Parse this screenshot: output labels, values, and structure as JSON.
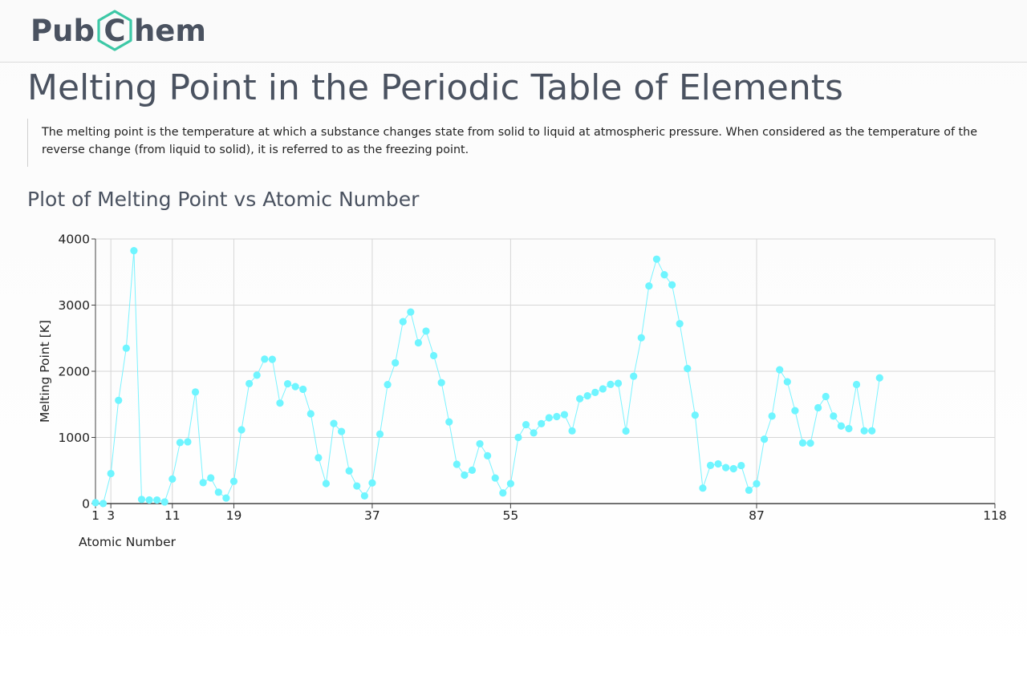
{
  "header": {
    "logo_left": "Pub",
    "logo_mid": "C",
    "logo_right": "hem"
  },
  "page_title": "Melting Point in the Periodic Table of Elements",
  "description": "The melting point is the temperature at which a substance changes state from solid to liquid at atmospheric pressure. When considered as the temperature of the reverse change (from liquid to solid), it is referred to as the freezing point.",
  "plot_heading": "Plot of Melting Point vs Atomic Number",
  "colors": {
    "brand_green": "#3dc8a6",
    "marker": "#6ff5ff",
    "line": "#7af3ff"
  },
  "chart_data": {
    "type": "line",
    "title": "",
    "xlabel": "Atomic Number",
    "ylabel": "Melting Point [K]",
    "xlim": [
      1,
      118
    ],
    "ylim": [
      0,
      4000
    ],
    "xticks": [
      1,
      3,
      11,
      19,
      37,
      55,
      87,
      118
    ],
    "yticks": [
      0,
      1000,
      2000,
      3000,
      4000
    ],
    "grid": true,
    "series": [
      {
        "name": "",
        "x": [
          1,
          2,
          3,
          4,
          5,
          6,
          7,
          8,
          9,
          10,
          11,
          12,
          13,
          14,
          15,
          16,
          17,
          18,
          19,
          20,
          21,
          22,
          23,
          24,
          25,
          26,
          27,
          28,
          29,
          30,
          31,
          32,
          33,
          34,
          35,
          36,
          37,
          38,
          39,
          40,
          41,
          42,
          43,
          44,
          45,
          46,
          47,
          48,
          49,
          50,
          51,
          52,
          53,
          54,
          55,
          56,
          57,
          58,
          59,
          60,
          61,
          62,
          63,
          64,
          65,
          66,
          67,
          68,
          69,
          70,
          71,
          72,
          73,
          74,
          75,
          76,
          77,
          78,
          79,
          80,
          81,
          82,
          83,
          84,
          85,
          86,
          87,
          88,
          89,
          90,
          91,
          92,
          93,
          94,
          95,
          96,
          97,
          98,
          99,
          100,
          101,
          102,
          103
        ],
        "y": [
          14,
          1,
          454,
          1560,
          2349,
          3823,
          63,
          55,
          54,
          25,
          371,
          923,
          934,
          1687,
          317,
          388,
          172,
          84,
          337,
          1115,
          1814,
          1941,
          2183,
          2180,
          1519,
          1811,
          1768,
          1728,
          1358,
          693,
          303,
          1211,
          1090,
          494,
          266,
          116,
          312,
          1050,
          1799,
          2128,
          2750,
          2896,
          2430,
          2607,
          2237,
          1828,
          1235,
          594,
          430,
          505,
          904,
          723,
          387,
          161,
          302,
          1000,
          1193,
          1068,
          1208,
          1297,
          1315,
          1345,
          1099,
          1585,
          1629,
          1680,
          1734,
          1802,
          1818,
          1097,
          1925,
          2506,
          3290,
          3695,
          3459,
          3306,
          2719,
          2041,
          1337,
          234,
          577,
          600,
          544,
          527,
          575,
          202,
          300,
          973,
          1323,
          2023,
          1841,
          1405,
          917,
          913,
          1449,
          1618,
          1323,
          1173,
          1133,
          1800,
          1100,
          1100,
          1900
        ]
      }
    ]
  }
}
